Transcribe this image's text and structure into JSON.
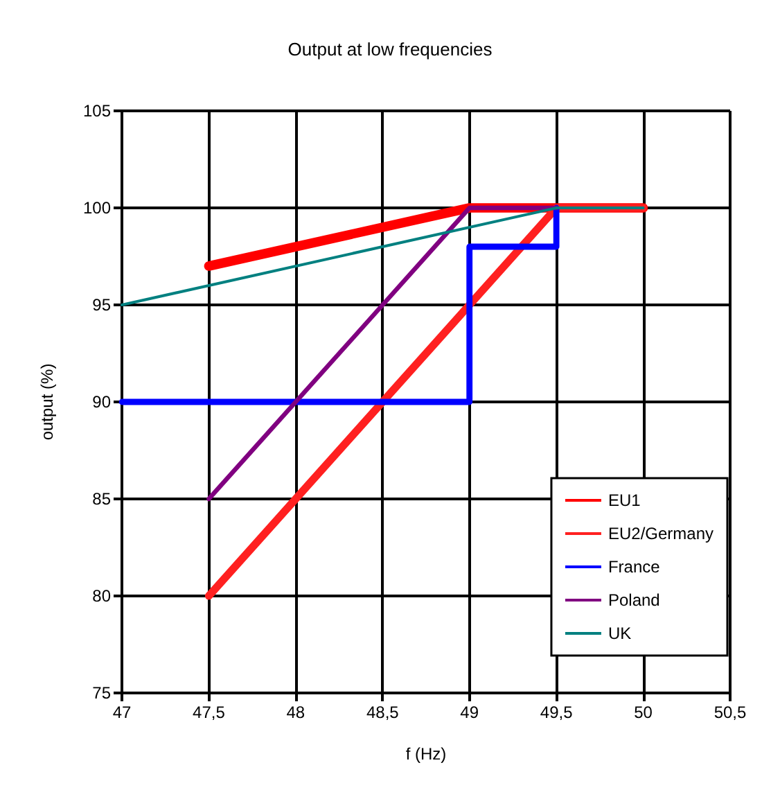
{
  "chart_data": {
    "type": "line",
    "title": "Output at low frequencies",
    "xlabel": "f (Hz)",
    "ylabel": "output (%)",
    "xlim": [
      47,
      50.5
    ],
    "xticks": [
      47,
      {
        "value": 47.5,
        "label": "47,5"
      },
      48,
      {
        "value": 48.5,
        "label": "48,5"
      },
      49,
      {
        "value": 49.5,
        "label": "49,5"
      },
      50,
      {
        "value": 50.5,
        "label": "50,5"
      }
    ],
    "ylim": [
      75,
      105
    ],
    "yticks": [
      75,
      80,
      85,
      90,
      95,
      100,
      105
    ],
    "grid": true,
    "legend": "bottom right",
    "marker": "none",
    "line_style": "solid",
    "series": [
      {
        "name": "EU1",
        "color": "#ff0000",
        "x": [
          47.5,
          49,
          50
        ],
        "values": [
          97,
          100,
          100
        ]
      },
      {
        "name": "EU2/Germany",
        "color": "#ff2020",
        "x": [
          47.5,
          49.5,
          50
        ],
        "values": [
          80,
          100,
          100
        ]
      },
      {
        "name": "France",
        "color": "#0000ff",
        "x": [
          47,
          49,
          49,
          49.5,
          49.5
        ],
        "values": [
          90,
          90,
          98,
          98,
          100
        ]
      },
      {
        "name": "Poland",
        "color": "#800080",
        "x": [
          47.5,
          49,
          49.5
        ],
        "values": [
          85,
          100,
          100
        ]
      },
      {
        "name": "UK",
        "color": "#008080",
        "x": [
          47,
          49.5,
          50
        ],
        "values": [
          95,
          100,
          100
        ]
      }
    ]
  }
}
